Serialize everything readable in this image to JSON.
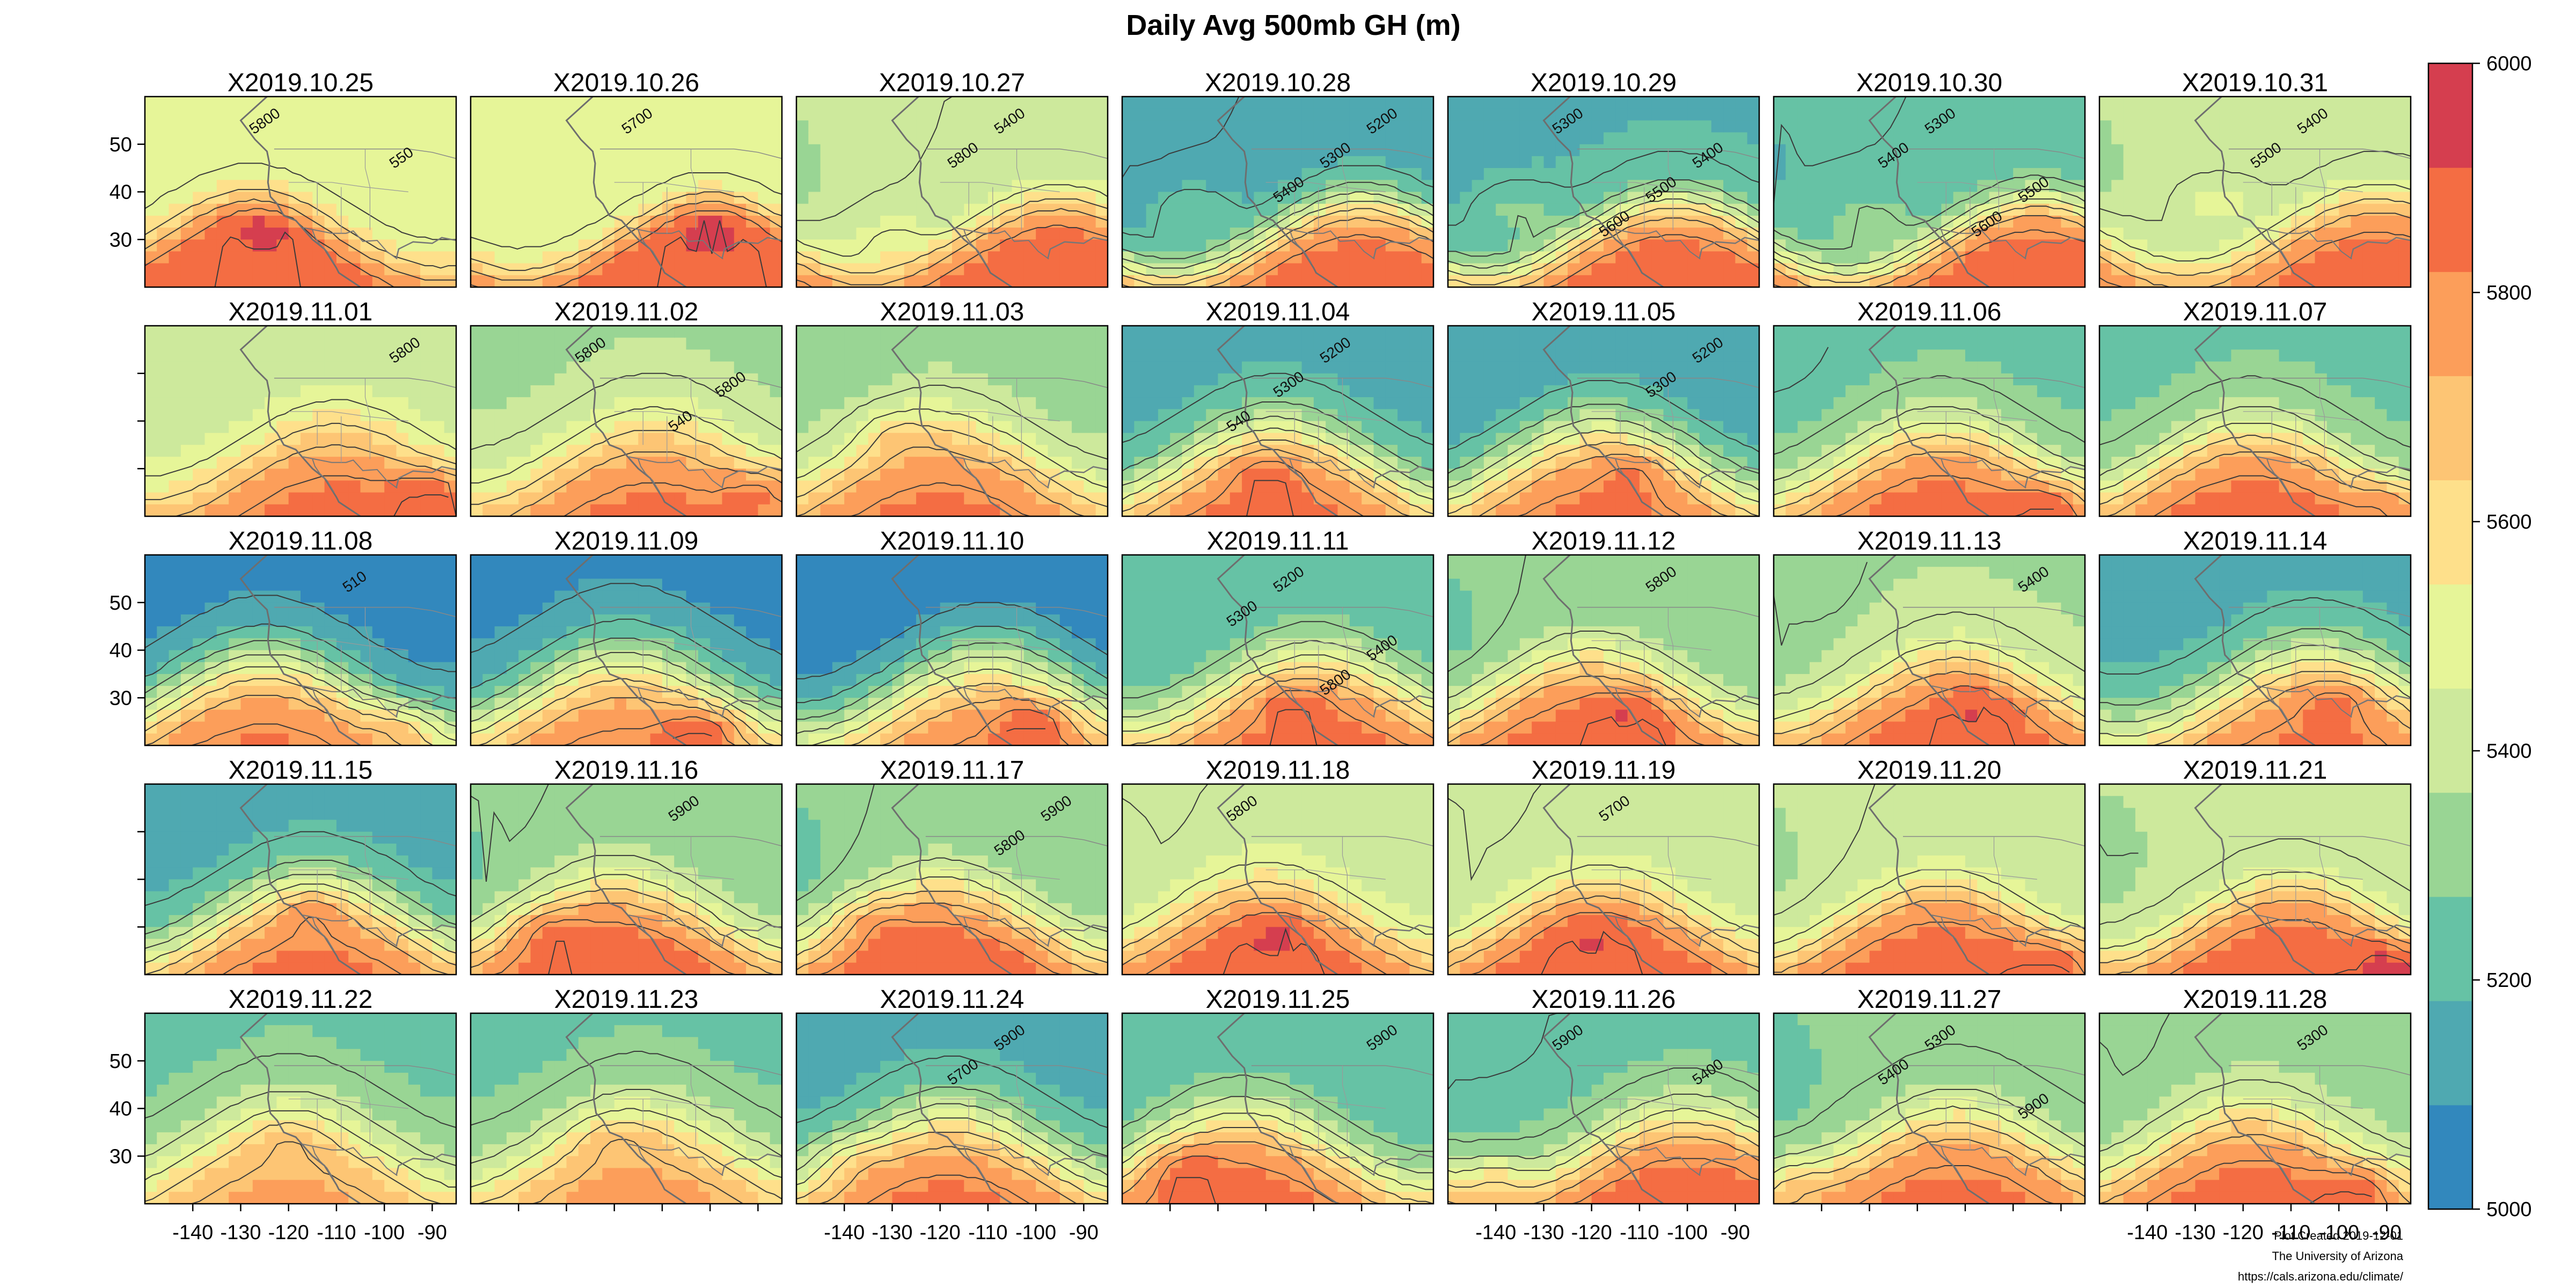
{
  "chart_data": {
    "type": "heatmap",
    "title": "Daily Avg 500mb GH (m)",
    "variable": "500mb geopotential height (m)",
    "layout": {
      "rows": 5,
      "cols": 7
    },
    "panels": [
      "X2019.10.25",
      "X2019.10.26",
      "X2019.10.27",
      "X2019.10.28",
      "X2019.10.29",
      "X2019.10.30",
      "X2019.10.31",
      "X2019.11.01",
      "X2019.11.02",
      "X2019.11.03",
      "X2019.11.04",
      "X2019.11.05",
      "X2019.11.06",
      "X2019.11.07",
      "X2019.11.08",
      "X2019.11.09",
      "X2019.11.10",
      "X2019.11.11",
      "X2019.11.12",
      "X2019.11.13",
      "X2019.11.14",
      "X2019.11.15",
      "X2019.11.16",
      "X2019.11.17",
      "X2019.11.18",
      "X2019.11.19",
      "X2019.11.20",
      "X2019.11.21",
      "X2019.11.22",
      "X2019.11.23",
      "X2019.11.24",
      "X2019.11.25",
      "X2019.11.26",
      "X2019.11.27",
      "X2019.11.28"
    ],
    "x_ticks": [
      -140,
      -130,
      -120,
      -110,
      -100,
      -90
    ],
    "y_ticks": [
      30,
      40,
      50
    ],
    "xlim": [
      -150,
      -85
    ],
    "ylim": [
      20,
      60
    ],
    "colorbar": {
      "ticks": [
        5000,
        5200,
        5400,
        5600,
        5800,
        6000
      ],
      "range": [
        5000,
        6000
      ],
      "colors": [
        "#3288bd",
        "#4fa9b1",
        "#66c2a5",
        "#99d594",
        "#cde99c",
        "#e6f598",
        "#fee08b",
        "#fdc574",
        "#fc9e5a",
        "#f46d43",
        "#d53e4f"
      ]
    },
    "contour_labels": [
      {
        "panel": 0,
        "text": "5800"
      },
      {
        "panel": 0,
        "text": "550"
      },
      {
        "panel": 1,
        "text": "5700"
      },
      {
        "panel": 2,
        "text": "5400"
      },
      {
        "panel": 2,
        "text": "5800"
      },
      {
        "panel": 3,
        "text": "5200"
      },
      {
        "panel": 3,
        "text": "5300"
      },
      {
        "panel": 3,
        "text": "5400"
      },
      {
        "panel": 4,
        "text": "5300"
      },
      {
        "panel": 4,
        "text": "5400"
      },
      {
        "panel": 4,
        "text": "5500"
      },
      {
        "panel": 4,
        "text": "5600"
      },
      {
        "panel": 5,
        "text": "5300"
      },
      {
        "panel": 5,
        "text": "5400"
      },
      {
        "panel": 5,
        "text": "5500"
      },
      {
        "panel": 5,
        "text": "5600"
      },
      {
        "panel": 6,
        "text": "5400"
      },
      {
        "panel": 6,
        "text": "5500"
      },
      {
        "panel": 7,
        "text": "5800"
      },
      {
        "panel": 8,
        "text": "5800"
      },
      {
        "panel": 8,
        "text": "5800"
      },
      {
        "panel": 8,
        "text": "540"
      },
      {
        "panel": 10,
        "text": "5200"
      },
      {
        "panel": 10,
        "text": "5300"
      },
      {
        "panel": 10,
        "text": "540"
      },
      {
        "panel": 11,
        "text": "5200"
      },
      {
        "panel": 11,
        "text": "5300"
      },
      {
        "panel": 14,
        "text": "510"
      },
      {
        "panel": 17,
        "text": "5200"
      },
      {
        "panel": 17,
        "text": "5300"
      },
      {
        "panel": 17,
        "text": "5400"
      },
      {
        "panel": 17,
        "text": "5800"
      },
      {
        "panel": 18,
        "text": "5800"
      },
      {
        "panel": 19,
        "text": "5400"
      },
      {
        "panel": 22,
        "text": "5900"
      },
      {
        "panel": 23,
        "text": "5900"
      },
      {
        "panel": 23,
        "text": "5800"
      },
      {
        "panel": 24,
        "text": "5800"
      },
      {
        "panel": 25,
        "text": "5700"
      },
      {
        "panel": 30,
        "text": "5900"
      },
      {
        "panel": 30,
        "text": "5700"
      },
      {
        "panel": 31,
        "text": "5900"
      },
      {
        "panel": 32,
        "text": "5900"
      },
      {
        "panel": 32,
        "text": "5400"
      },
      {
        "panel": 33,
        "text": "5300"
      },
      {
        "panel": 33,
        "text": "5400"
      },
      {
        "panel": 33,
        "text": "5900"
      },
      {
        "panel": 34,
        "text": "5300"
      }
    ],
    "credits": [
      "Plot Created 2019-12-01",
      "The University of Arizona",
      "https://cals.arizona.edu/climate/"
    ],
    "grid": false,
    "legend": "colorbar-right"
  }
}
